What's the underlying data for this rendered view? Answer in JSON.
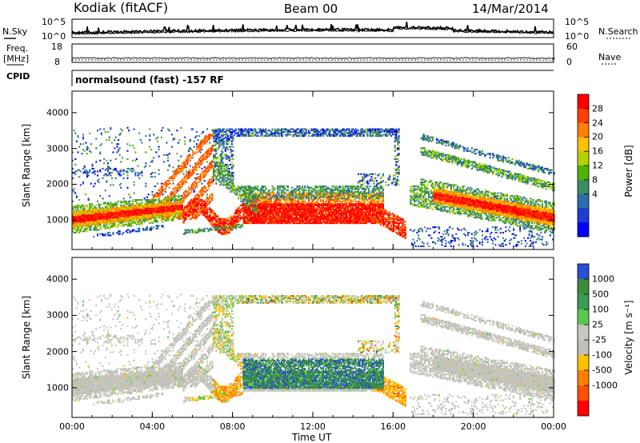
{
  "header": {
    "station": "Kodiak (fitACF)",
    "beam": "Beam 00",
    "date": "14/Mar/2014"
  },
  "strip_noise": {
    "left_label": "N.Sky",
    "right_label": "N.Search",
    "left_ticks": [
      "10^5",
      "10^0"
    ],
    "right_ticks": [
      "10^5",
      "10^0"
    ]
  },
  "strip_freq": {
    "left_label_top": "Freq.",
    "left_label_bottom": "[MHz]",
    "right_label": "Nave",
    "left_ticks": [
      "18",
      "8"
    ],
    "right_ticks": [
      "60",
      "0"
    ]
  },
  "cpid": {
    "label": "CPID",
    "text": "normalsound (fast) -157 RF"
  },
  "chart_data": [
    {
      "type": "heatmap",
      "name": "power",
      "ylabel": "Slant Range [km]",
      "y_ticks": [
        1000,
        2000,
        3000,
        4000
      ],
      "ylim": [
        180,
        4600
      ],
      "xlim": [
        0,
        24
      ],
      "colorbar": {
        "label": "Power [dB]",
        "ticks": [
          "28",
          "24",
          "20",
          "16",
          "12",
          "8",
          "4"
        ],
        "colors": [
          "#ff0000",
          "#ff4000",
          "#ff8000",
          "#ffc000",
          "#b4d200",
          "#50b400",
          "#3c8c64",
          "#2a6eaa",
          "#1e3cd2",
          "#0000ff"
        ]
      }
    },
    {
      "type": "heatmap",
      "name": "velocity",
      "ylabel": "Slant Range [km]",
      "y_ticks": [
        1000,
        2000,
        3000,
        4000
      ],
      "ylim": [
        180,
        4600
      ],
      "xlim": [
        0,
        24
      ],
      "colorbar": {
        "label": "Velocity [m s⁻¹]",
        "ticks": [
          "1000",
          "500",
          "100",
          "25",
          "-25",
          "-100",
          "-500",
          "-1000"
        ],
        "colors": [
          "#2850d2",
          "#3c8c3c",
          "#3c9a5a",
          "#5ac850",
          "#c8c8c0",
          "#c0c0b8",
          "#ffc000",
          "#ff8000",
          "#ff5000",
          "#ff0000"
        ]
      }
    }
  ],
  "xaxis": {
    "label": "Time UT",
    "ticks": [
      "00:00",
      "04:00",
      "08:00",
      "12:00",
      "16:00",
      "20:00",
      "00:00"
    ]
  }
}
